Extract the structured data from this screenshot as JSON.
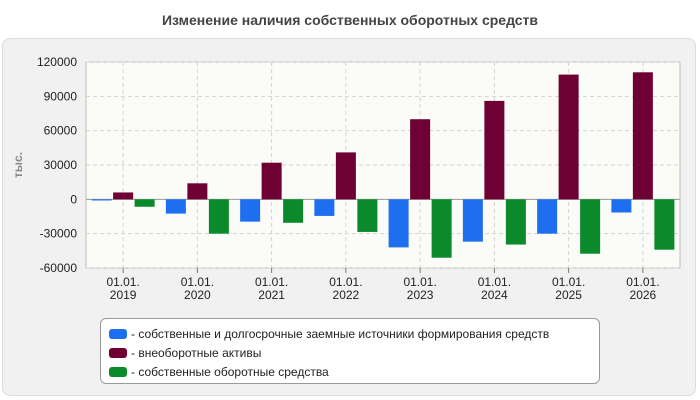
{
  "chart_data": {
    "type": "bar",
    "title": "Изменение наличия собственных оборотных средств",
    "ylabel": "тыс.",
    "xlabel": "",
    "ylim": [
      -60000,
      120000
    ],
    "yticks": [
      120000,
      90000,
      60000,
      30000,
      0,
      -30000,
      -60000
    ],
    "categories": [
      [
        "01.01.",
        "2019"
      ],
      [
        "01.01.",
        "2020"
      ],
      [
        "01.01.",
        "2021"
      ],
      [
        "01.01.",
        "2022"
      ],
      [
        "01.01.",
        "2023"
      ],
      [
        "01.01.",
        "2024"
      ],
      [
        "01.01.",
        "2025"
      ],
      [
        "01.01.",
        "2026"
      ]
    ],
    "series": [
      {
        "name": "- собственные и долгосрочные заемные источники формирования средств",
        "color": "#1e6ff0",
        "values": [
          -1000,
          -12500,
          -19500,
          -14500,
          -42000,
          -37000,
          -30000,
          -11500
        ]
      },
      {
        "name": "- внеоборотные активы",
        "color": "#6e0034",
        "values": [
          6000,
          14000,
          32000,
          41000,
          70000,
          86000,
          109000,
          111000
        ]
      },
      {
        "name": "- собственные оборотные средства",
        "color": "#0a8a2a",
        "values": [
          -6500,
          -30000,
          -20500,
          -28500,
          -51000,
          -39500,
          -47500,
          -44000
        ]
      }
    ],
    "grid": true,
    "legend_position": "bottom"
  }
}
